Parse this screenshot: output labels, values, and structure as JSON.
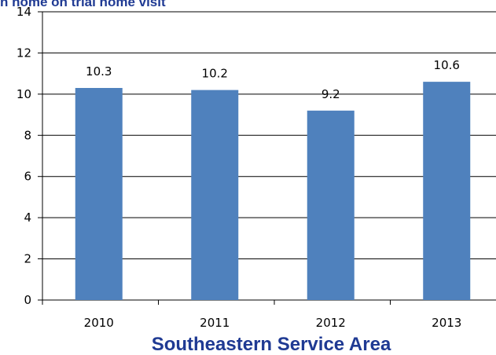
{
  "chart_data": {
    "type": "bar",
    "title": "h home on trial home visit",
    "xlabel": "Southeastern Service Area",
    "ylabel": "",
    "categories": [
      "2010",
      "2011",
      "2012",
      "2013"
    ],
    "values": [
      10.3,
      10.2,
      9.2,
      10.6
    ],
    "data_labels": [
      "10.3",
      "10.2",
      "9.2",
      "10.6"
    ],
    "ylim": [
      0,
      14
    ],
    "y_ticks": [
      0,
      2,
      4,
      6,
      8,
      10,
      12,
      14
    ],
    "y_tick_labels": [
      "0",
      "2",
      "4",
      "6",
      "8",
      "10",
      "12",
      "14"
    ],
    "grid": true,
    "legend": "none",
    "bar_color": "#4F81BD",
    "gridline_color": "#000000",
    "title_color": "#1F3A93"
  }
}
